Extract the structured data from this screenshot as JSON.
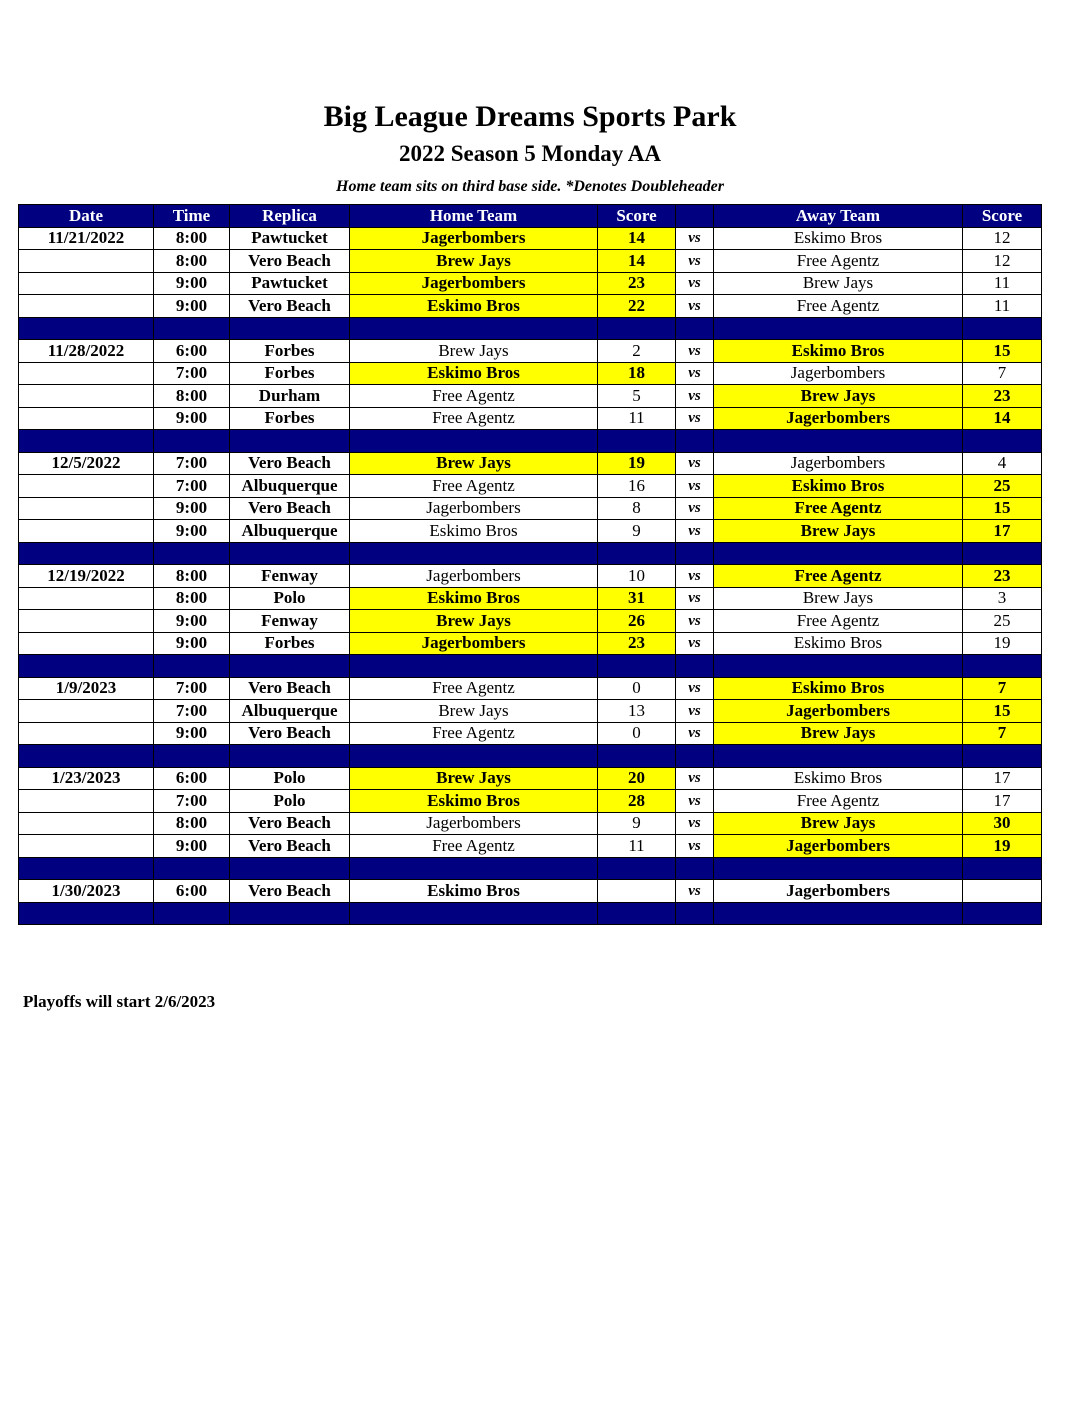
{
  "title": "Big League Dreams Sports Park",
  "subtitle": "2022 Season 5 Monday AA",
  "note": "Home team sits on third base side.  *Denotes Doubleheader",
  "headers": [
    "Date",
    "Time",
    "Replica",
    "Home Team",
    "Score",
    "",
    "Away Team",
    "Score"
  ],
  "vs_label": "vs",
  "colors": {
    "header": "#000080",
    "winner": "#ffff00"
  },
  "weeks": [
    {
      "date": "11/21/2022",
      "games": [
        {
          "time": "8:00",
          "replica": "Pawtucket",
          "home": "Jagerbombers",
          "home_score": "14",
          "away": "Eskimo Bros",
          "away_score": "12",
          "winner": "home"
        },
        {
          "time": "8:00",
          "replica": "Vero Beach",
          "home": "Brew Jays",
          "home_score": "14",
          "away": "Free Agentz",
          "away_score": "12",
          "winner": "home"
        },
        {
          "time": "9:00",
          "replica": "Pawtucket",
          "home": "Jagerbombers",
          "home_score": "23",
          "away": "Brew Jays",
          "away_score": "11",
          "winner": "home"
        },
        {
          "time": "9:00",
          "replica": "Vero Beach",
          "home": "Eskimo Bros",
          "home_score": "22",
          "away": "Free Agentz",
          "away_score": "11",
          "winner": "home"
        }
      ]
    },
    {
      "date": "11/28/2022",
      "games": [
        {
          "time": "6:00",
          "replica": "Forbes",
          "home": "Brew Jays",
          "home_score": "2",
          "away": "Eskimo Bros",
          "away_score": "15",
          "winner": "away"
        },
        {
          "time": "7:00",
          "replica": "Forbes",
          "home": "Eskimo Bros",
          "home_score": "18",
          "away": "Jagerbombers",
          "away_score": "7",
          "winner": "home"
        },
        {
          "time": "8:00",
          "replica": "Durham",
          "home": "Free Agentz",
          "home_score": "5",
          "away": "Brew Jays",
          "away_score": "23",
          "winner": "away"
        },
        {
          "time": "9:00",
          "replica": "Forbes",
          "home": "Free Agentz",
          "home_score": "11",
          "away": "Jagerbombers",
          "away_score": "14",
          "winner": "away"
        }
      ]
    },
    {
      "date": "12/5/2022",
      "games": [
        {
          "time": "7:00",
          "replica": "Vero Beach",
          "home": "Brew Jays",
          "home_score": "19",
          "away": "Jagerbombers",
          "away_score": "4",
          "winner": "home"
        },
        {
          "time": "7:00",
          "replica": "Albuquerque",
          "home": "Free Agentz",
          "home_score": "16",
          "away": "Eskimo Bros",
          "away_score": "25",
          "winner": "away"
        },
        {
          "time": "9:00",
          "replica": "Vero Beach",
          "home": "Jagerbombers",
          "home_score": "8",
          "away": "Free Agentz",
          "away_score": "15",
          "winner": "away"
        },
        {
          "time": "9:00",
          "replica": "Albuquerque",
          "home": "Eskimo Bros",
          "home_score": "9",
          "away": "Brew Jays",
          "away_score": "17",
          "winner": "away"
        }
      ]
    },
    {
      "date": "12/19/2022",
      "games": [
        {
          "time": "8:00",
          "replica": "Fenway",
          "home": "Jagerbombers",
          "home_score": "10",
          "away": "Free Agentz",
          "away_score": "23",
          "winner": "away"
        },
        {
          "time": "8:00",
          "replica": "Polo",
          "home": "Eskimo Bros",
          "home_score": "31",
          "away": "Brew Jays",
          "away_score": "3",
          "winner": "home"
        },
        {
          "time": "9:00",
          "replica": "Fenway",
          "home": "Brew Jays",
          "home_score": "26",
          "away": "Free Agentz",
          "away_score": "25",
          "winner": "home"
        },
        {
          "time": "9:00",
          "replica": "Forbes",
          "home": "Jagerbombers",
          "home_score": "23",
          "away": "Eskimo Bros",
          "away_score": "19",
          "winner": "home"
        }
      ]
    },
    {
      "date": "1/9/2023",
      "games": [
        {
          "time": "7:00",
          "replica": "Vero Beach",
          "home": "Free Agentz",
          "home_score": "0",
          "away": "Eskimo Bros",
          "away_score": "7",
          "winner": "away"
        },
        {
          "time": "7:00",
          "replica": "Albuquerque",
          "home": "Brew Jays",
          "home_score": "13",
          "away": "Jagerbombers",
          "away_score": "15",
          "winner": "away"
        },
        {
          "time": "9:00",
          "replica": "Vero Beach",
          "home": "Free Agentz",
          "home_score": "0",
          "away": "Brew Jays",
          "away_score": "7",
          "winner": "away"
        }
      ]
    },
    {
      "date": "1/23/2023",
      "games": [
        {
          "time": "6:00",
          "replica": "Polo",
          "home": "Brew Jays",
          "home_score": "20",
          "away": "Eskimo Bros",
          "away_score": "17",
          "winner": "home"
        },
        {
          "time": "7:00",
          "replica": "Polo",
          "home": "Eskimo Bros",
          "home_score": "28",
          "away": "Free Agentz",
          "away_score": "17",
          "winner": "home"
        },
        {
          "time": "8:00",
          "replica": "Vero Beach",
          "home": "Jagerbombers",
          "home_score": "9",
          "away": "Brew Jays",
          "away_score": "30",
          "winner": "away"
        },
        {
          "time": "9:00",
          "replica": "Vero Beach",
          "home": "Free Agentz",
          "home_score": "11",
          "away": "Jagerbombers",
          "away_score": "19",
          "winner": "away"
        }
      ]
    },
    {
      "date": "1/30/2023",
      "games": [
        {
          "time": "6:00",
          "replica": "Vero Beach",
          "home": "Eskimo Bros",
          "home_score": "",
          "away": "Jagerbombers",
          "away_score": "",
          "winner": "none"
        }
      ]
    }
  ],
  "footer": "Playoffs will start 2/6/2023"
}
